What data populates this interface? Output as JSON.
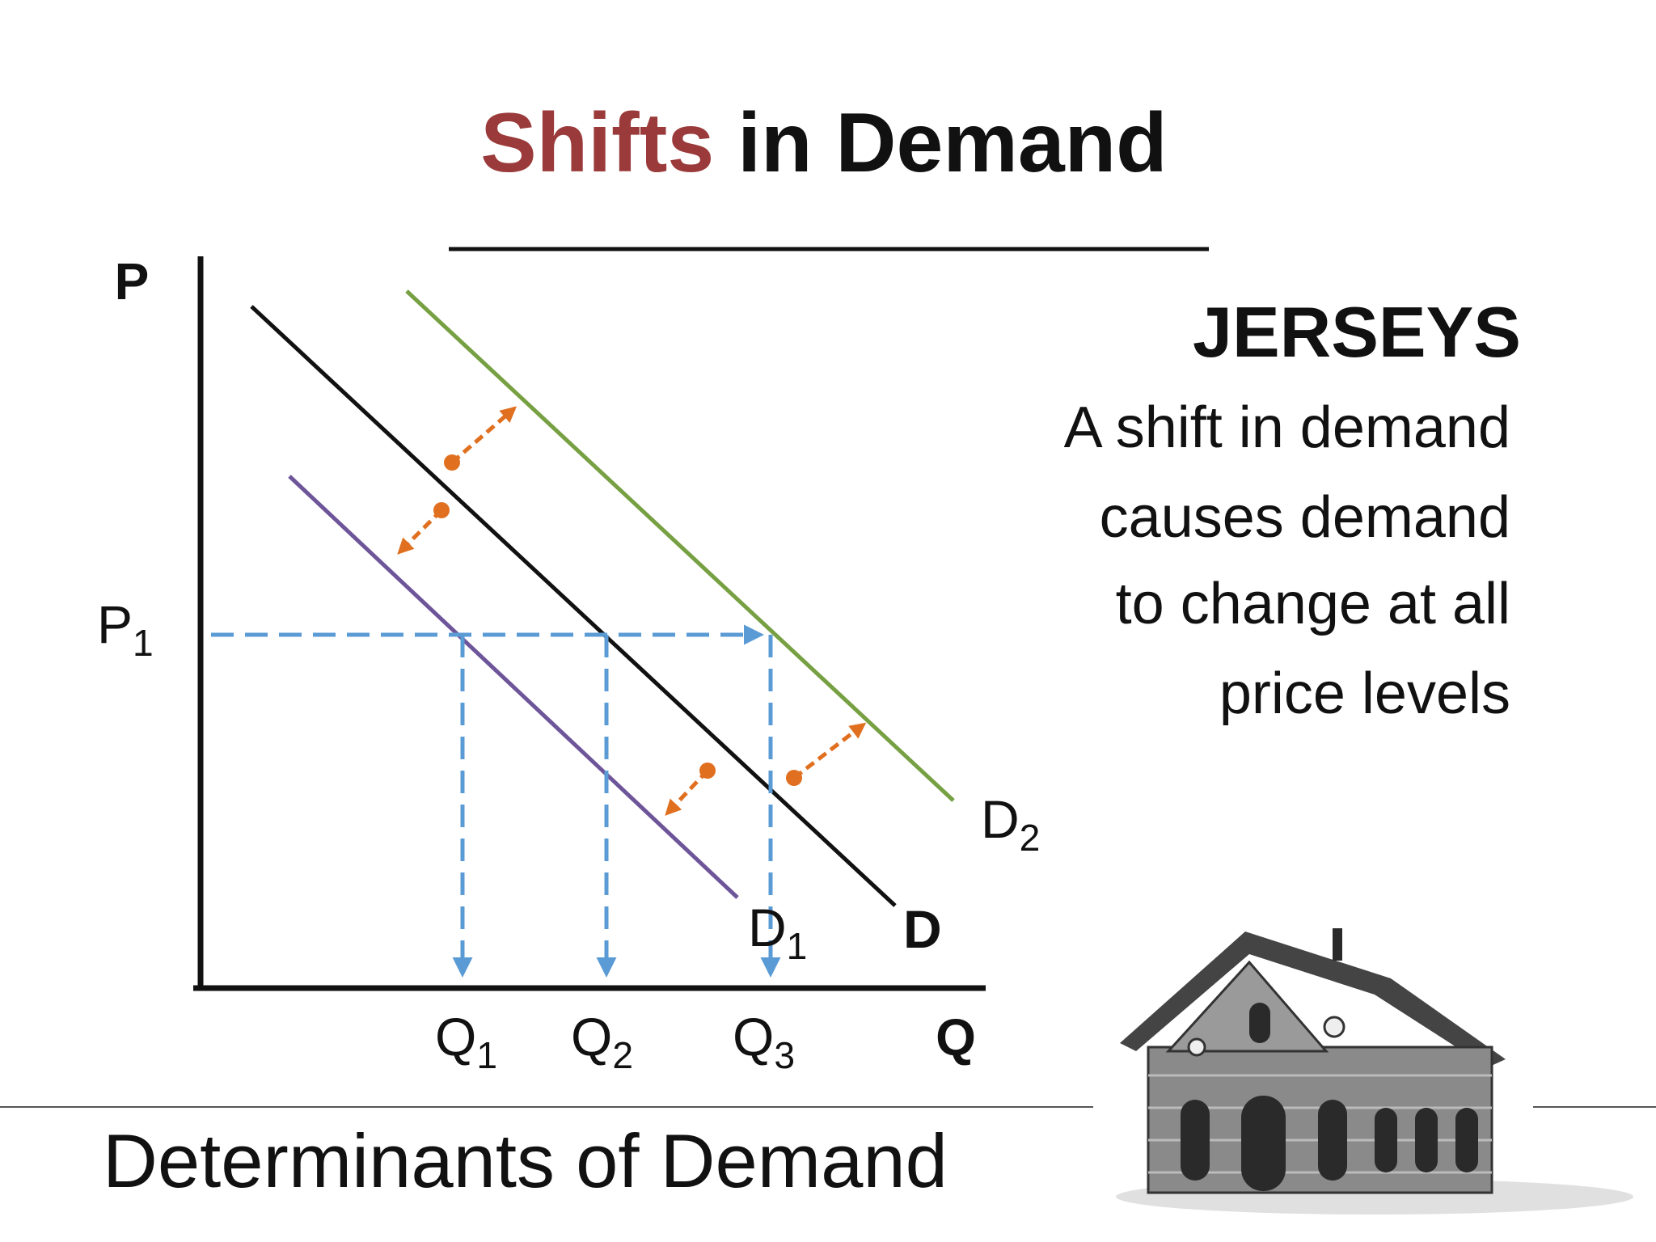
{
  "header": {
    "title_highlight": "Shifts",
    "title_rest": "in Demand"
  },
  "diagram": {
    "y_axis_label": "P",
    "x_axis_label": "Q",
    "price_label": {
      "text": "P",
      "sub": "1"
    },
    "quantity_labels": [
      {
        "text": "Q",
        "sub": "1"
      },
      {
        "text": "Q",
        "sub": "2"
      },
      {
        "text": "Q",
        "sub": "3"
      }
    ],
    "curves": [
      {
        "text": "D",
        "sub": "1"
      },
      {
        "text": "D"
      },
      {
        "text": "D",
        "sub": "2"
      }
    ]
  },
  "sidebar": {
    "heading": "JERSEYS",
    "lines": [
      "A shift in demand",
      "causes demand",
      "to change at all",
      "price levels"
    ]
  },
  "footer": {
    "title": "Determinants of Demand"
  }
}
